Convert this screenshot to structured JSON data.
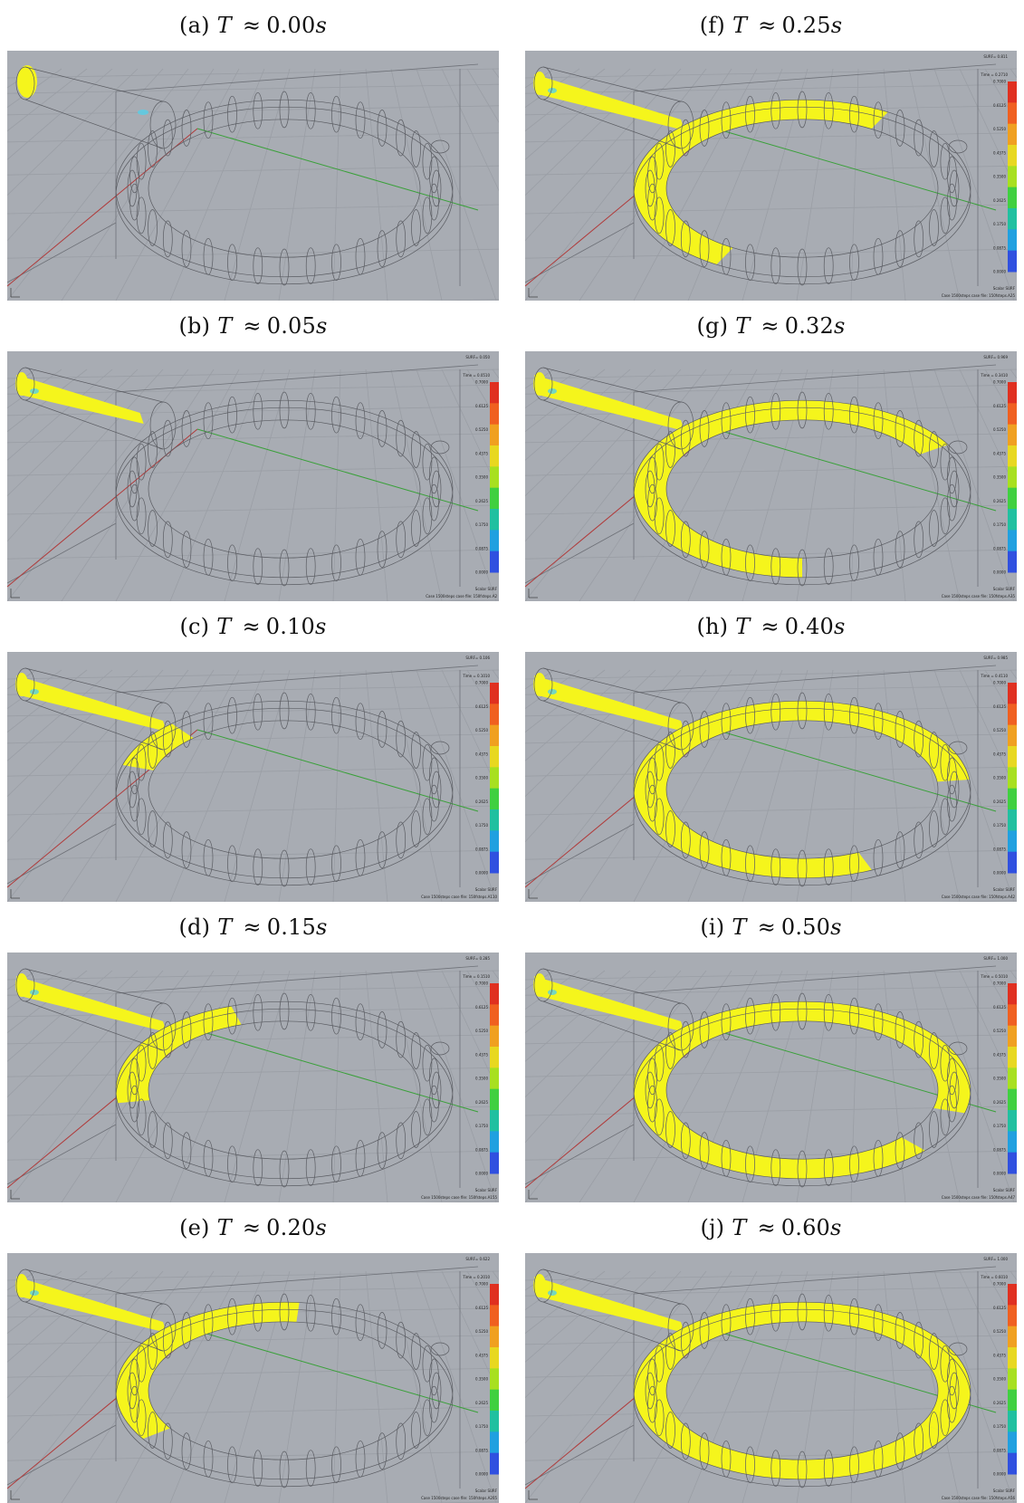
{
  "figure": {
    "panels": [
      {
        "label": "(a)",
        "time": "0.00",
        "fill": 0.03,
        "legend": null
      },
      {
        "label": "(b)",
        "time": "0.05",
        "fill": 0.1,
        "legend": {
          "surf": "SURF= 0.050",
          "time": "Time = 0.0510",
          "footer": "Case 1500steps case file: 150fsteps.A2"
        }
      },
      {
        "label": "(c)",
        "time": "0.10",
        "fill": 0.18,
        "legend": {
          "surf": "SURF= 0.106",
          "time": "Time = 0.1010",
          "footer": "Case 1500steps case file: 150fsteps.A110"
        }
      },
      {
        "label": "(d)",
        "time": "0.15",
        "fill": 0.3,
        "legend": {
          "surf": "SURF= 0.285",
          "time": "Time = 0.1510",
          "footer": "Case 1500steps case file: 150fsteps.A155"
        }
      },
      {
        "label": "(e)",
        "time": "0.20",
        "fill": 0.42,
        "legend": {
          "surf": "SURF= 0.622",
          "time": "Time = 0.2010",
          "footer": "Case 1500steps case file: 150fsteps.A205"
        }
      },
      {
        "label": "(f)",
        "time": "0.25",
        "fill": 0.55,
        "legend": {
          "surf": "SURF= 0.811",
          "time": "Time = 0.2710",
          "footer": "Case 1500steps case file: 150fsteps.A25"
        }
      },
      {
        "label": "(g)",
        "time": "0.32",
        "fill": 0.7,
        "legend": {
          "surf": "SURF= 0.969",
          "time": "Time = 0.3410",
          "footer": "Case 1500steps case file: 150fsteps.A35"
        }
      },
      {
        "label": "(h)",
        "time": "0.40",
        "fill": 0.82,
        "legend": {
          "surf": "SURF= 0.985",
          "time": "Time = 0.4110",
          "footer": "Case 1500steps case file: 150fsteps.A42"
        }
      },
      {
        "label": "(i)",
        "time": "0.50",
        "fill": 0.93,
        "legend": {
          "surf": "SURF= 1.000",
          "time": "Time = 0.5010",
          "footer": "Case 1500steps case file: 150fsteps.A47"
        }
      },
      {
        "label": "(j)",
        "time": "0.60",
        "fill": 1.0,
        "legend": {
          "surf": "SURF= 1.000",
          "time": "Time = 0.6010",
          "footer": "Case 1500steps case file: 150fsteps.A56"
        }
      }
    ],
    "caption_var": "T",
    "caption_rel": "≈",
    "caption_unit": "s",
    "legend_ticks": [
      "0.7000",
      "0.6125",
      "0.5250",
      "0.4375",
      "0.3500",
      "0.2625",
      "0.1750",
      "0.0875",
      "0.0000"
    ],
    "legend_name": "Scalar SURF",
    "colors": {
      "background": "#a8acb3",
      "fluid": "#f5f51c",
      "wire": "#5a5c62",
      "grid": "#9a9ea5",
      "axis_x": "#b03a3a",
      "axis_y": "#3aa03a",
      "residual": "#55d0e8"
    }
  }
}
